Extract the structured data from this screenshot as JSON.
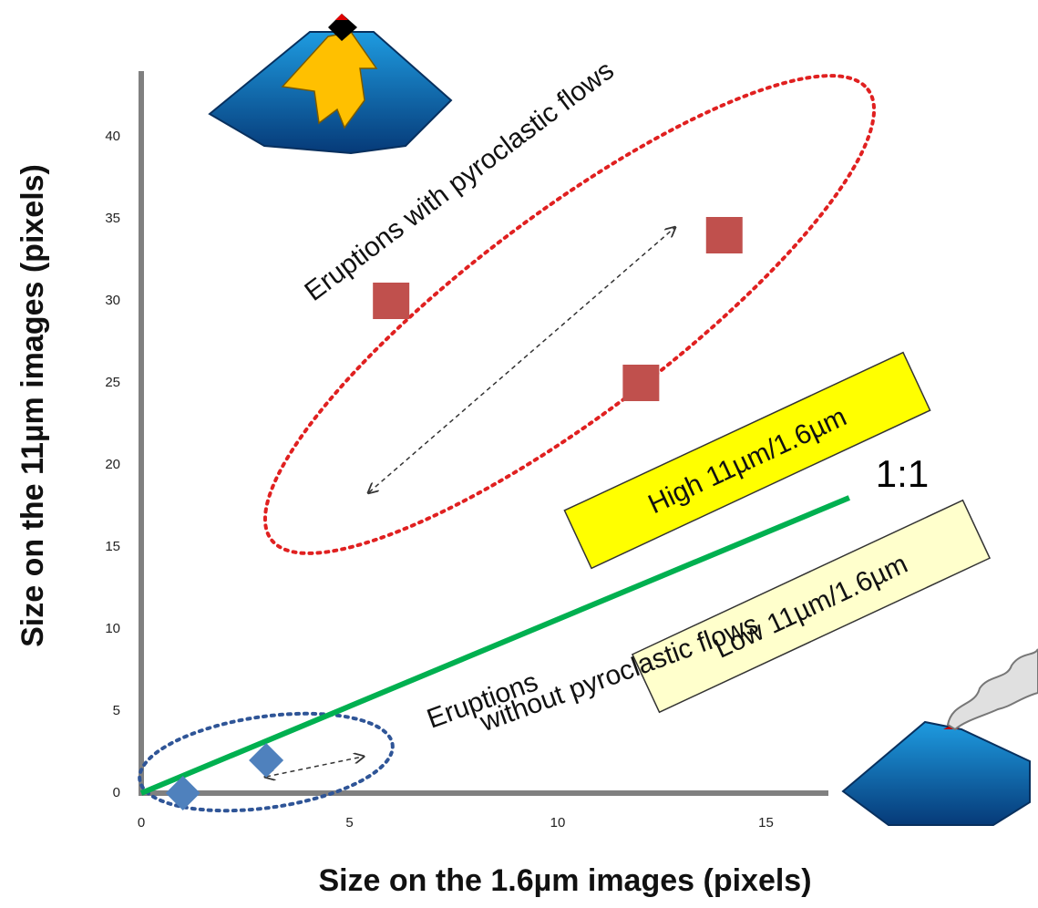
{
  "chart_data": {
    "type": "scatter",
    "x_label": "Size on the 1.6µm images (pixels)",
    "y_label": "Size on the 11µm images (pixels)",
    "xlim": [
      0,
      16.5
    ],
    "ylim": [
      0,
      44
    ],
    "xticks": [
      0,
      5,
      10,
      15
    ],
    "yticks": [
      0,
      5,
      10,
      15,
      20,
      25,
      30,
      35,
      40
    ],
    "grid": false,
    "series": [
      {
        "color": "#c0504d",
        "marker": "square",
        "x": [
          6,
          12,
          14
        ],
        "values": [
          30,
          25,
          34
        ]
      },
      {
        "color": "#4f81bd",
        "marker": "diamond",
        "x": [
          1,
          3
        ],
        "values": [
          0,
          2
        ]
      },
      {
        "color": "#00b050",
        "marker": "line",
        "x": [
          0,
          17
        ],
        "values": [
          0,
          18
        ]
      }
    ],
    "annotations": [
      "Eruptions with pyroclastic flows",
      "High 11µm/1.6µm",
      "Low 11µm/1.6µm",
      "1:1",
      "Eruptions",
      "without pyroclastic flows"
    ]
  }
}
